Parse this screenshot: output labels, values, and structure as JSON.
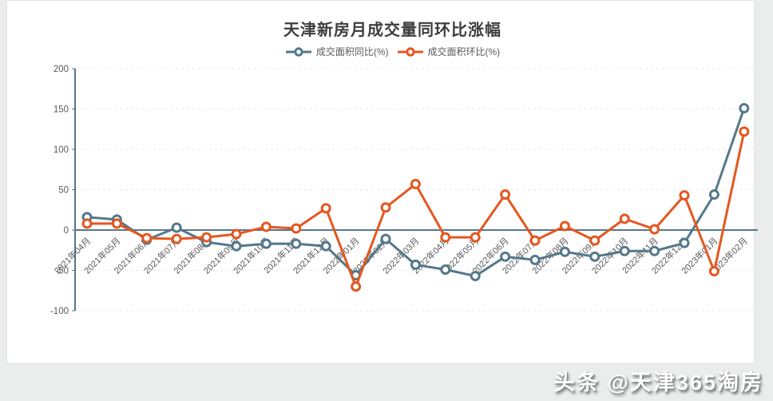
{
  "page": {
    "watermark": "头条 @天津365淘房"
  },
  "chart_data": {
    "type": "line",
    "title": "天津新房月成交量同环比涨幅",
    "categories": [
      "2021年04月",
      "2021年05月",
      "2021年06月",
      "2021年07月",
      "2021年08月",
      "2021年09月",
      "2021年10月",
      "2021年11月",
      "2021年12月",
      "2022年01月",
      "2022年02月",
      "2022年03月",
      "2022年04月",
      "2022年05月",
      "2022年06月",
      "2022年07月",
      "2022年08月",
      "2022年09月",
      "2022年10月",
      "2022年11月",
      "2022年12月",
      "2023年01月",
      "2023年02月"
    ],
    "series": [
      {
        "name": "成交面积同比(%)",
        "color": "#54788a",
        "values": [
          16,
          13,
          -12,
          3,
          -15,
          -20,
          -17,
          -17,
          -20,
          -56,
          -11,
          -43,
          -49,
          -57,
          -33,
          -37,
          -27,
          -33,
          -26,
          -26,
          -16,
          44,
          151
        ]
      },
      {
        "name": "成交面积环比(%)",
        "color": "#e4571f",
        "values": [
          8,
          8,
          -10,
          -11,
          -9,
          -5,
          4,
          2,
          27,
          -70,
          28,
          57,
          -9,
          -9,
          44,
          -13,
          5,
          -13,
          14,
          1,
          43,
          -51,
          122
        ]
      }
    ],
    "ylim": [
      -100,
      200
    ],
    "yticks": [
      200,
      150,
      100,
      50,
      0,
      -50,
      -100
    ],
    "xlabel": "",
    "ylabel": "",
    "grid": "horizontal-dashed",
    "legend_position": "top",
    "marker": "hollow-circle",
    "colors": {
      "axis": "#54788a",
      "grid": "#e8e8e8",
      "tick_label": "#595959"
    }
  }
}
